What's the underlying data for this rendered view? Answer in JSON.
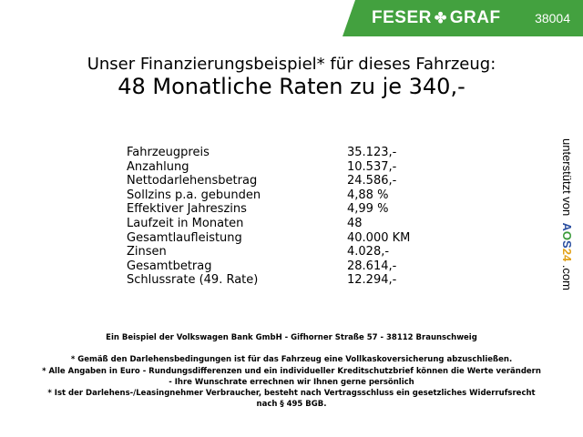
{
  "banner": {
    "brand_left": "FESER",
    "brand_right": "GRAF",
    "dealer_number": "38004",
    "color": "#43a13f"
  },
  "headline": {
    "line1": "Unser Finanzierungsbeispiel* für dieses Fahrzeug:",
    "line2": "48 Monatliche Raten zu je 340,-"
  },
  "rows": [
    {
      "label": "Fahrzeugpreis",
      "value": "35.123,-"
    },
    {
      "label": "Anzahlung",
      "value": "10.537,-"
    },
    {
      "label": "Nettodarlehensbetrag",
      "value": "24.586,-"
    },
    {
      "label": "Sollzins p.a. gebunden",
      "value": "4,88 %"
    },
    {
      "label": "Effektiver Jahreszins",
      "value": "4,99 %"
    },
    {
      "label": "Laufzeit in Monaten",
      "value": "48"
    },
    {
      "label": "Gesamtlaufleistung",
      "value": "40.000 KM"
    },
    {
      "label": "Zinsen",
      "value": "4.028,-"
    },
    {
      "label": "Gesamtbetrag",
      "value": "28.614,-"
    },
    {
      "label": "Schlussrate (49. Rate)",
      "value": "12.294,-"
    }
  ],
  "side": {
    "prefix": "unterstützt von",
    "logo_a": "A",
    "logo_o": "O",
    "logo_s": "S",
    "logo_24": "24",
    "suffix": ".com"
  },
  "footer": {
    "bank": "Ein Beispiel der Volkswagen Bank GmbH - Gifhorner Straße 57 - 38112 Braunschweig",
    "note1": "* Gemäß den Darlehensbedingungen ist für das Fahrzeug eine Vollkaskoversicherung abzuschließen.",
    "note2a": "* Alle Angaben in Euro - Rundungsdifferenzen und ein individueller Kreditschutzbrief können die Werte verändern",
    "note2b": "- Ihre Wunschrate errechnen wir Ihnen gerne persönlich",
    "note3a": "* Ist der Darlehens-/Leasingnehmer Verbraucher, besteht nach Vertragsschluss ein gesetzliches Widerrufsrecht",
    "note3b": "nach § 495 BGB."
  }
}
